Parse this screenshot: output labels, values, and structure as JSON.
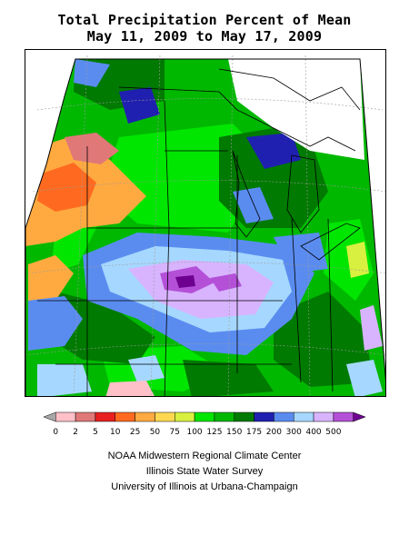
{
  "title": {
    "line1": "Total Precipitation Percent of Mean",
    "line2": "May 11, 2009 to May 17, 2009"
  },
  "legend": {
    "labels": [
      "0",
      "2",
      "5",
      "10",
      "25",
      "50",
      "75",
      "100",
      "125",
      "150",
      "175",
      "200",
      "300",
      "400",
      "500"
    ],
    "colors": [
      "#a8a8a8",
      "#ffc0c8",
      "#e07878",
      "#e82020",
      "#ff6a20",
      "#ffaa40",
      "#ffd850",
      "#d8f040",
      "#00e600",
      "#00b800",
      "#007a00",
      "#2020b0",
      "#5a8cf0",
      "#a6d8ff",
      "#d8b4ff",
      "#b450d8",
      "#6e0090"
    ]
  },
  "credits": {
    "line1": "NOAA Midwestern Regional Climate Center",
    "line2": "Illinois State Water Survey",
    "line3": "University of Illinois at Urbana-Champaign"
  },
  "map": {
    "region": "Midwestern United States",
    "variable": "precipitation percent of mean",
    "palette": {
      "dark_green": "#007a00",
      "green": "#00b800",
      "bright_green": "#00e600",
      "light_blue": "#a6d8ff",
      "medium_blue": "#5a8cf0",
      "dark_blue": "#2020b0",
      "lavender": "#d8b4ff",
      "purple": "#b450d8",
      "dark_purple": "#6e0090",
      "orange": "#ffaa40",
      "dark_orange": "#ff6a20",
      "pink": "#e07878",
      "yellow_green": "#d8f040"
    }
  }
}
